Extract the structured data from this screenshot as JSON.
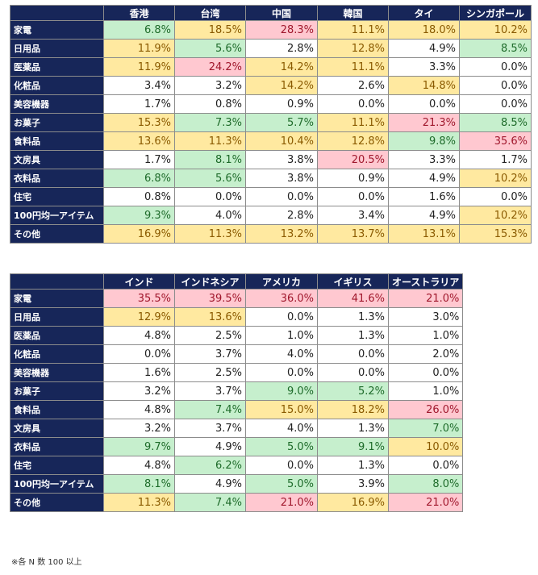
{
  "table1": {
    "columns": [
      "香港",
      "台湾",
      "中国",
      "韓国",
      "タイ",
      "シンガポール"
    ],
    "rows": [
      {
        "label": "家電",
        "cells": [
          {
            "v": "6.8%",
            "c": "g"
          },
          {
            "v": "18.5%",
            "c": "y"
          },
          {
            "v": "28.3%",
            "c": "p"
          },
          {
            "v": "11.1%",
            "c": "y"
          },
          {
            "v": "18.0%",
            "c": "y"
          },
          {
            "v": "10.2%",
            "c": "y"
          }
        ]
      },
      {
        "label": "日用品",
        "cells": [
          {
            "v": "11.9%",
            "c": "y"
          },
          {
            "v": "5.6%",
            "c": "g"
          },
          {
            "v": "2.8%",
            "c": ""
          },
          {
            "v": "12.8%",
            "c": "y"
          },
          {
            "v": "4.9%",
            "c": ""
          },
          {
            "v": "8.5%",
            "c": "g"
          }
        ]
      },
      {
        "label": "医薬品",
        "cells": [
          {
            "v": "11.9%",
            "c": "y"
          },
          {
            "v": "24.2%",
            "c": "p"
          },
          {
            "v": "14.2%",
            "c": "y"
          },
          {
            "v": "11.1%",
            "c": "y"
          },
          {
            "v": "3.3%",
            "c": ""
          },
          {
            "v": "0.0%",
            "c": ""
          }
        ]
      },
      {
        "label": "化粧品",
        "cells": [
          {
            "v": "3.4%",
            "c": ""
          },
          {
            "v": "3.2%",
            "c": ""
          },
          {
            "v": "14.2%",
            "c": "y"
          },
          {
            "v": "2.6%",
            "c": ""
          },
          {
            "v": "14.8%",
            "c": "y"
          },
          {
            "v": "0.0%",
            "c": ""
          }
        ]
      },
      {
        "label": "美容機器",
        "cells": [
          {
            "v": "1.7%",
            "c": ""
          },
          {
            "v": "0.8%",
            "c": ""
          },
          {
            "v": "0.9%",
            "c": ""
          },
          {
            "v": "0.0%",
            "c": ""
          },
          {
            "v": "0.0%",
            "c": ""
          },
          {
            "v": "0.0%",
            "c": ""
          }
        ]
      },
      {
        "label": "お菓子",
        "cells": [
          {
            "v": "15.3%",
            "c": "y"
          },
          {
            "v": "7.3%",
            "c": "g"
          },
          {
            "v": "5.7%",
            "c": "g"
          },
          {
            "v": "11.1%",
            "c": "y"
          },
          {
            "v": "21.3%",
            "c": "p"
          },
          {
            "v": "8.5%",
            "c": "g"
          }
        ]
      },
      {
        "label": "食料品",
        "cells": [
          {
            "v": "13.6%",
            "c": "y"
          },
          {
            "v": "11.3%",
            "c": "y"
          },
          {
            "v": "10.4%",
            "c": "y"
          },
          {
            "v": "12.8%",
            "c": "y"
          },
          {
            "v": "9.8%",
            "c": "g"
          },
          {
            "v": "35.6%",
            "c": "p"
          }
        ]
      },
      {
        "label": "文房具",
        "cells": [
          {
            "v": "1.7%",
            "c": ""
          },
          {
            "v": "8.1%",
            "c": "g"
          },
          {
            "v": "3.8%",
            "c": ""
          },
          {
            "v": "20.5%",
            "c": "p"
          },
          {
            "v": "3.3%",
            "c": ""
          },
          {
            "v": "1.7%",
            "c": ""
          }
        ]
      },
      {
        "label": "衣料品",
        "cells": [
          {
            "v": "6.8%",
            "c": "g"
          },
          {
            "v": "5.6%",
            "c": "g"
          },
          {
            "v": "3.8%",
            "c": ""
          },
          {
            "v": "0.9%",
            "c": ""
          },
          {
            "v": "4.9%",
            "c": ""
          },
          {
            "v": "10.2%",
            "c": "y"
          }
        ]
      },
      {
        "label": "住宅",
        "cells": [
          {
            "v": "0.8%",
            "c": ""
          },
          {
            "v": "0.0%",
            "c": ""
          },
          {
            "v": "0.0%",
            "c": ""
          },
          {
            "v": "0.0%",
            "c": ""
          },
          {
            "v": "1.6%",
            "c": ""
          },
          {
            "v": "0.0%",
            "c": ""
          }
        ]
      },
      {
        "label": "100円均一アイテム",
        "cells": [
          {
            "v": "9.3%",
            "c": "g"
          },
          {
            "v": "4.0%",
            "c": ""
          },
          {
            "v": "2.8%",
            "c": ""
          },
          {
            "v": "3.4%",
            "c": ""
          },
          {
            "v": "4.9%",
            "c": ""
          },
          {
            "v": "10.2%",
            "c": "y"
          }
        ]
      },
      {
        "label": "その他",
        "cells": [
          {
            "v": "16.9%",
            "c": "y"
          },
          {
            "v": "11.3%",
            "c": "y"
          },
          {
            "v": "13.2%",
            "c": "y"
          },
          {
            "v": "13.7%",
            "c": "y"
          },
          {
            "v": "13.1%",
            "c": "y"
          },
          {
            "v": "15.3%",
            "c": "y"
          }
        ]
      }
    ]
  },
  "table2": {
    "columns": [
      "インド",
      "インドネシア",
      "アメリカ",
      "イギリス",
      "オーストラリア"
    ],
    "rows": [
      {
        "label": "家電",
        "cells": [
          {
            "v": "35.5%",
            "c": "p"
          },
          {
            "v": "39.5%",
            "c": "p"
          },
          {
            "v": "36.0%",
            "c": "p"
          },
          {
            "v": "41.6%",
            "c": "p"
          },
          {
            "v": "21.0%",
            "c": "p"
          }
        ]
      },
      {
        "label": "日用品",
        "cells": [
          {
            "v": "12.9%",
            "c": "y"
          },
          {
            "v": "13.6%",
            "c": "y"
          },
          {
            "v": "0.0%",
            "c": ""
          },
          {
            "v": "1.3%",
            "c": ""
          },
          {
            "v": "3.0%",
            "c": ""
          }
        ]
      },
      {
        "label": "医薬品",
        "cells": [
          {
            "v": "4.8%",
            "c": ""
          },
          {
            "v": "2.5%",
            "c": ""
          },
          {
            "v": "1.0%",
            "c": ""
          },
          {
            "v": "1.3%",
            "c": ""
          },
          {
            "v": "1.0%",
            "c": ""
          }
        ]
      },
      {
        "label": "化粧品",
        "cells": [
          {
            "v": "0.0%",
            "c": ""
          },
          {
            "v": "3.7%",
            "c": ""
          },
          {
            "v": "4.0%",
            "c": ""
          },
          {
            "v": "0.0%",
            "c": ""
          },
          {
            "v": "2.0%",
            "c": ""
          }
        ]
      },
      {
        "label": "美容機器",
        "cells": [
          {
            "v": "1.6%",
            "c": ""
          },
          {
            "v": "2.5%",
            "c": ""
          },
          {
            "v": "0.0%",
            "c": ""
          },
          {
            "v": "0.0%",
            "c": ""
          },
          {
            "v": "0.0%",
            "c": ""
          }
        ]
      },
      {
        "label": "お菓子",
        "cells": [
          {
            "v": "3.2%",
            "c": ""
          },
          {
            "v": "3.7%",
            "c": ""
          },
          {
            "v": "9.0%",
            "c": "g"
          },
          {
            "v": "5.2%",
            "c": "g"
          },
          {
            "v": "1.0%",
            "c": ""
          }
        ]
      },
      {
        "label": "食料品",
        "cells": [
          {
            "v": "4.8%",
            "c": ""
          },
          {
            "v": "7.4%",
            "c": "g"
          },
          {
            "v": "15.0%",
            "c": "y"
          },
          {
            "v": "18.2%",
            "c": "y"
          },
          {
            "v": "26.0%",
            "c": "p"
          }
        ]
      },
      {
        "label": "文房具",
        "cells": [
          {
            "v": "3.2%",
            "c": ""
          },
          {
            "v": "3.7%",
            "c": ""
          },
          {
            "v": "4.0%",
            "c": ""
          },
          {
            "v": "1.3%",
            "c": ""
          },
          {
            "v": "7.0%",
            "c": "g"
          }
        ]
      },
      {
        "label": "衣料品",
        "cells": [
          {
            "v": "9.7%",
            "c": "g"
          },
          {
            "v": "4.9%",
            "c": ""
          },
          {
            "v": "5.0%",
            "c": "g"
          },
          {
            "v": "9.1%",
            "c": "g"
          },
          {
            "v": "10.0%",
            "c": "y"
          }
        ]
      },
      {
        "label": "住宅",
        "cells": [
          {
            "v": "4.8%",
            "c": ""
          },
          {
            "v": "6.2%",
            "c": "g"
          },
          {
            "v": "0.0%",
            "c": ""
          },
          {
            "v": "1.3%",
            "c": ""
          },
          {
            "v": "0.0%",
            "c": ""
          }
        ]
      },
      {
        "label": "100円均一アイテム",
        "cells": [
          {
            "v": "8.1%",
            "c": "g"
          },
          {
            "v": "4.9%",
            "c": ""
          },
          {
            "v": "5.0%",
            "c": "g"
          },
          {
            "v": "3.9%",
            "c": ""
          },
          {
            "v": "8.0%",
            "c": "g"
          }
        ]
      },
      {
        "label": "その他",
        "cells": [
          {
            "v": "11.3%",
            "c": "y"
          },
          {
            "v": "7.4%",
            "c": "g"
          },
          {
            "v": "21.0%",
            "c": "p"
          },
          {
            "v": "16.9%",
            "c": "y"
          },
          {
            "v": "21.0%",
            "c": "p"
          }
        ]
      }
    ]
  },
  "footnote": "※各 N 数 100 以上",
  "colors": {
    "header_bg": "#172659",
    "low_green": "#c6efcd",
    "mid_yellow": "#ffe9a0",
    "high_pink": "#ffc8d0"
  }
}
